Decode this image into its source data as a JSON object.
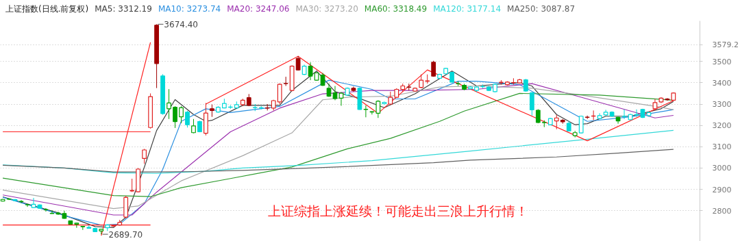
{
  "chart_data": {
    "type": "candlestick",
    "title": "上证指数(日线.前复权)",
    "categories": [
      null,
      null,
      null,
      null,
      null,
      null,
      null,
      null,
      null,
      null,
      null,
      null,
      null,
      null,
      null,
      null,
      null,
      null,
      null,
      null,
      null,
      null,
      null,
      null,
      null,
      null,
      null,
      null,
      null,
      null,
      null,
      null,
      null,
      null,
      null,
      null,
      null,
      null,
      null,
      null,
      null,
      null,
      null,
      null,
      null,
      null,
      null,
      null,
      null,
      null,
      null,
      null,
      null,
      null,
      null,
      null,
      null,
      null,
      null,
      null,
      null,
      null,
      null,
      null,
      null,
      null,
      null,
      null,
      null,
      null,
      null,
      null,
      null,
      null,
      null,
      null,
      null,
      null,
      null,
      null,
      null,
      null,
      null,
      null,
      null,
      null,
      null,
      null,
      null,
      null,
      null,
      null,
      null,
      null,
      null,
      null,
      null,
      null,
      null,
      null,
      null,
      null,
      null,
      null,
      null,
      null,
      null,
      null,
      null,
      null
    ],
    "ohlc": [
      [
        2845,
        2856,
        2843,
        2853
      ],
      [
        2855,
        2858,
        2850,
        2854
      ],
      [
        2848,
        2855,
        2846,
        2852
      ],
      [
        2844,
        2850,
        2836,
        2843
      ],
      [
        2829,
        2830,
        2818,
        2828
      ],
      [
        2815,
        2860,
        2814,
        2830
      ],
      [
        2827,
        2830,
        2810,
        2812
      ],
      [
        2805,
        2812,
        2796,
        2804
      ],
      [
        2788,
        2802,
        2786,
        2787
      ],
      [
        2789,
        2795,
        2780,
        2784
      ],
      [
        2787,
        2800,
        2762,
        2764
      ],
      [
        2752,
        2754,
        2735,
        2737
      ],
      [
        2737,
        2744,
        2720,
        2742
      ],
      [
        2727,
        2728,
        2710,
        2725
      ],
      [
        2722,
        2732,
        2716,
        2718
      ],
      [
        2717,
        2720,
        2700,
        2702
      ],
      [
        2705,
        2716,
        2689.7,
        2713
      ],
      [
        2720,
        2736,
        2705,
        2733
      ],
      [
        2728,
        2734,
        2724,
        2730
      ],
      [
        2733,
        2757,
        2730,
        2745
      ],
      [
        2770,
        2870,
        2765,
        2862
      ],
      [
        2893,
        2950,
        2888,
        2895
      ],
      [
        2889,
        3000,
        2886,
        2995
      ],
      [
        3045,
        3090,
        3020,
        3085
      ],
      [
        3190,
        3350,
        3185,
        3335
      ],
      [
        3670,
        3674.4,
        3375,
        3490
      ],
      [
        3432,
        3440,
        3250,
        3255
      ],
      [
        3278,
        3370,
        3230,
        3305
      ],
      [
        3285,
        3290,
        3188,
        3218
      ],
      [
        3240,
        3290,
        3210,
        3283
      ],
      [
        3262,
        3268,
        3190,
        3203
      ],
      [
        3166,
        3230,
        3163,
        3198
      ],
      [
        3218,
        3222,
        3168,
        3170
      ],
      [
        3163,
        3305,
        3153,
        3258
      ],
      [
        3278,
        3298,
        3240,
        3270
      ],
      [
        3263,
        3290,
        3260,
        3285
      ],
      [
        3282,
        3325,
        3280,
        3303
      ],
      [
        3286,
        3295,
        3278,
        3285
      ],
      [
        3282,
        3312,
        3280,
        3297
      ],
      [
        3297,
        3325,
        3290,
        3318
      ],
      [
        3330,
        3347,
        3290,
        3294
      ],
      [
        3284,
        3300,
        3267,
        3283
      ],
      [
        3283,
        3290,
        3275,
        3282
      ],
      [
        3282,
        3300,
        3270,
        3281
      ],
      [
        3281,
        3320,
        3270,
        3316
      ],
      [
        3310,
        3397,
        3300,
        3393
      ],
      [
        3397,
        3428,
        3385,
        3396
      ],
      [
        3364,
        3482,
        3360,
        3478
      ],
      [
        3514,
        3525,
        3457,
        3460
      ],
      [
        3439,
        3485,
        3436,
        3478
      ],
      [
        3478,
        3496,
        3412,
        3431
      ],
      [
        3412,
        3450,
        3410,
        3446
      ],
      [
        3436,
        3446,
        3385,
        3388
      ],
      [
        3374,
        3396,
        3333,
        3337
      ],
      [
        3353,
        3385,
        3318,
        3326
      ],
      [
        3328,
        3356,
        3292,
        3351
      ],
      [
        3342,
        3378,
        3340,
        3374
      ],
      [
        3374,
        3382,
        3358,
        3364
      ],
      [
        3374,
        3378,
        3273,
        3275
      ],
      [
        3276,
        3294,
        3238,
        3275
      ],
      [
        3264,
        3266,
        3251,
        3263
      ],
      [
        3257,
        3318,
        3235,
        3313
      ],
      [
        3302,
        3312,
        3298,
        3308
      ],
      [
        3300,
        3358,
        3296,
        3332
      ],
      [
        3332,
        3374,
        3330,
        3369
      ],
      [
        3369,
        3396,
        3358,
        3385
      ],
      [
        3380,
        3396,
        3364,
        3379
      ],
      [
        3361,
        3378,
        3358,
        3374
      ],
      [
        3378,
        3439,
        3374,
        3412
      ],
      [
        3407,
        3439,
        3396,
        3409
      ],
      [
        3496,
        3503,
        3428,
        3431
      ],
      [
        3421,
        3442,
        3418,
        3439
      ],
      [
        3442,
        3470,
        3440,
        3467
      ],
      [
        3449,
        3452,
        3400,
        3403
      ],
      [
        3396,
        3407,
        3385,
        3395
      ],
      [
        3388,
        3395,
        3365,
        3369
      ],
      [
        3372,
        3384,
        3370,
        3380
      ],
      [
        3364,
        3383,
        3356,
        3380
      ],
      [
        3381,
        3392,
        3375,
        3382
      ],
      [
        3380,
        3385,
        3362,
        3364
      ],
      [
        3358,
        3396,
        3355,
        3393
      ],
      [
        3401,
        3412,
        3391,
        3402
      ],
      [
        3391,
        3407,
        3388,
        3403
      ],
      [
        3400,
        3421,
        3391,
        3401
      ],
      [
        3399,
        3418,
        3396,
        3414
      ],
      [
        3414,
        3418,
        3358,
        3361
      ],
      [
        3353,
        3356,
        3246,
        3273
      ],
      [
        3271,
        3276,
        3210,
        3214
      ],
      [
        3214,
        3224,
        3192,
        3213
      ],
      [
        3203,
        3235,
        3200,
        3232
      ],
      [
        3221,
        3249,
        3182,
        3235
      ],
      [
        3224,
        3230,
        3208,
        3217
      ],
      [
        3210,
        3221,
        3172,
        3174
      ],
      [
        3152,
        3174,
        3144,
        3166
      ],
      [
        3165,
        3246,
        3162,
        3243
      ],
      [
        3239,
        3246,
        3230,
        3238
      ],
      [
        3243,
        3270,
        3224,
        3244
      ],
      [
        3232,
        3257,
        3229,
        3246
      ],
      [
        3249,
        3273,
        3246,
        3262
      ],
      [
        3262,
        3266,
        3240,
        3243
      ],
      [
        3238,
        3240,
        3208,
        3221
      ],
      [
        3243,
        3275,
        3230,
        3242
      ],
      [
        3227,
        3255,
        3224,
        3251
      ],
      [
        3251,
        3275,
        3240,
        3250
      ],
      [
        3275,
        3278,
        3234,
        3238
      ],
      [
        3246,
        3265,
        3240,
        3260
      ],
      [
        3278,
        3324,
        3270,
        3307
      ],
      [
        3310,
        3332,
        3305,
        3328
      ],
      [
        3324,
        3328,
        3316,
        3320
      ],
      [
        3318,
        3355,
        3316,
        3352
      ]
    ],
    "colors": [
      "#00a000",
      "#00a000",
      "#00d8d8",
      "#00a000",
      "#00a000",
      "#00d8d8",
      "#00d8d8",
      "#00a000",
      "#00a000",
      "#00a000",
      "#00a000",
      "#00a000",
      "#00a000",
      "#00a000",
      "#00d8d8",
      "#00d8d8",
      "#00a000",
      "#00d8d8",
      "#e02020",
      "#e02020",
      "#e02020",
      "#e02020",
      "#e02020",
      "#e02020",
      "#e02020",
      "#a00000",
      "#00d8d8",
      "#00a000",
      "#00a000",
      "#00a000",
      "#00d8d8",
      "#00a000",
      "#00d8d8",
      "#e02020",
      "#a00000",
      "#00d8d8",
      "#00d8d8",
      "#00d8d8",
      "#00d8d8",
      "#e02020",
      "#a00000",
      "#00d8d8",
      "#00d8d8",
      "#a00000",
      "#e02020",
      "#e02020",
      "#a00000",
      "#e02020",
      "#a00000",
      "#00d8d8",
      "#00a000",
      "#00a000",
      "#00a000",
      "#00a000",
      "#00a000",
      "#00a000",
      "#00d8d8",
      "#a00000",
      "#00d8d8",
      "#00a000",
      "#00a000",
      "#00a000",
      "#00d8d8",
      "#e02020",
      "#e02020",
      "#e02020",
      "#a00000",
      "#e02020",
      "#e02020",
      "#e02020",
      "#a00000",
      "#00d8d8",
      "#00d8d8",
      "#00d8d8",
      "#00a000",
      "#00a000",
      "#00d8d8",
      "#00d8d8",
      "#00d8d8",
      "#00d8d8",
      "#00d8d8",
      "#e02020",
      "#e02020",
      "#e02020",
      "#e02020",
      "#00d8d8",
      "#00d8d8",
      "#00a000",
      "#00a000",
      "#00d8d8",
      "#e02020",
      "#a00000",
      "#00d8d8",
      "#00a000",
      "#00d8d8",
      "#a00000",
      "#e02020",
      "#00d8d8",
      "#00d8d8",
      "#00d8d8",
      "#00a000",
      "#00d8d8",
      "#00d8d8",
      "#00d8d8",
      "#00d8d8",
      "#00d8d8",
      "#e02020",
      "#e02020",
      "#a00000",
      "#e02020"
    ],
    "series": [
      {
        "name": "MA5: 3312.19",
        "color": "#404040",
        "type": "line",
        "values": [
          2865,
          null,
          null,
          null,
          null,
          null,
          null,
          null,
          null,
          2790,
          null,
          null,
          null,
          null,
          null,
          2726,
          null,
          null,
          2721,
          null,
          2769,
          null,
          null,
          3004,
          null,
          3176,
          null,
          null,
          3321,
          null,
          null,
          3251,
          null,
          3219,
          3224,
          null,
          null,
          null,
          null,
          3294,
          null,
          null,
          null,
          null,
          null,
          3294,
          null,
          3364,
          null,
          null,
          null,
          3455,
          null,
          null,
          3358,
          null,
          null,
          null,
          3326,
          null,
          null,
          null,
          3283,
          null,
          null,
          null,
          null,
          3348,
          null,
          null,
          null,
          null,
          null,
          3455,
          null,
          null,
          null,
          3385,
          null,
          null,
          null,
          null,
          null,
          null,
          3401,
          null,
          3385,
          null,
          null,
          null,
          3251,
          null,
          null,
          3203,
          null,
          3208,
          null,
          null,
          3243,
          null,
          null,
          null,
          3243,
          null,
          null,
          null,
          null,
          3278,
          null,
          3312
        ]
      },
      {
        "name": "MA10: 3273.74",
        "color": "#2a8fe0",
        "type": "line",
        "values": [
          2863,
          null,
          null,
          null,
          null,
          null,
          null,
          null,
          null,
          null,
          null,
          2769,
          null,
          null,
          null,
          null,
          2732,
          null,
          null,
          2737,
          null,
          null,
          null,
          2833,
          null,
          null,
          2994,
          null,
          null,
          3219,
          null,
          null,
          null,
          3278,
          null,
          null,
          null,
          3260,
          null,
          null,
          null,
          null,
          null,
          null,
          null,
          3289,
          null,
          null,
          null,
          null,
          null,
          null,
          null,
          3412,
          null,
          null,
          null,
          null,
          null,
          null,
          3369,
          null,
          null,
          3324,
          null,
          null,
          null,
          3324,
          null,
          null,
          null,
          null,
          null,
          null,
          3407,
          null,
          null,
          3407,
          null,
          null,
          null,
          null,
          null,
          null,
          3391,
          null,
          null,
          null,
          null,
          null,
          null,
          null,
          null,
          null,
          null,
          3219,
          null,
          null,
          null,
          null,
          null,
          null,
          3240,
          null,
          null,
          null,
          null,
          null,
          null,
          3274
        ]
      },
      {
        "name": "MA20: 3247.06",
        "color": "#9b2fae",
        "type": "line",
        "values": [
          2874,
          null,
          null,
          null,
          null,
          null,
          null,
          null,
          null,
          null,
          null,
          null,
          null,
          null,
          null,
          null,
          null,
          null,
          2780,
          null,
          null,
          2780,
          null,
          null,
          null,
          2887,
          null,
          null,
          null,
          null,
          null,
          null,
          null,
          null,
          null,
          null,
          null,
          3170,
          null,
          null,
          null,
          null,
          null,
          null,
          null,
          3281,
          null,
          null,
          null,
          null,
          null,
          null,
          3348,
          null,
          null,
          null,
          null,
          null,
          null,
          null,
          3364,
          null,
          null,
          null,
          null,
          null,
          null,
          3364,
          null,
          null,
          null,
          null,
          null,
          null,
          null,
          null,
          null,
          3369,
          null,
          null,
          null,
          null,
          null,
          null,
          null,
          null,
          3396,
          null,
          null,
          null,
          null,
          null,
          null,
          null,
          3332,
          null,
          null,
          null,
          null,
          null,
          null,
          null,
          null,
          null,
          null,
          null,
          3235,
          null,
          null,
          3247
        ]
      },
      {
        "name": "MA30: 3273.20",
        "color": "#a8a8a8",
        "type": "line",
        "values": [
          2897,
          null,
          null,
          null,
          null,
          null,
          null,
          null,
          null,
          null,
          null,
          null,
          null,
          null,
          null,
          null,
          null,
          null,
          2810,
          null,
          null,
          null,
          2822,
          null,
          null,
          null,
          null,
          null,
          null,
          2940,
          null,
          null,
          null,
          null,
          null,
          null,
          null,
          null,
          null,
          3058,
          null,
          null,
          null,
          null,
          null,
          null,
          null,
          3165,
          null,
          null,
          null,
          null,
          3320,
          null,
          null,
          null,
          3332,
          null,
          null,
          null,
          null,
          null,
          null,
          3337,
          null,
          null,
          null,
          null,
          null,
          null,
          null,
          3380,
          null,
          null,
          null,
          null,
          null,
          3385,
          null,
          null,
          null,
          null,
          null,
          null,
          null,
          null,
          3374,
          null,
          null,
          null,
          null,
          null,
          null,
          null,
          3342,
          null,
          null,
          null,
          null,
          null,
          null,
          null,
          null,
          null,
          null,
          null,
          null,
          3285,
          null,
          3273
        ]
      },
      {
        "name": "MA60: 3318.49",
        "color": "#2e9a2e",
        "type": "line",
        "values": [
          2953,
          null,
          null,
          null,
          null,
          null,
          null,
          null,
          null,
          null,
          null,
          null,
          null,
          null,
          null,
          null,
          null,
          null,
          2871,
          null,
          null,
          null,
          null,
          null,
          2866,
          null,
          null,
          null,
          null,
          2908,
          null,
          null,
          null,
          null,
          null,
          null,
          null,
          2951,
          null,
          null,
          null,
          null,
          null,
          null,
          null,
          null,
          null,
          3005,
          null,
          null,
          null,
          null,
          null,
          null,
          null,
          null,
          3090,
          null,
          null,
          null,
          null,
          null,
          null,
          3139,
          null,
          null,
          null,
          null,
          null,
          null,
          null,
          3219,
          null,
          null,
          null,
          3267,
          null,
          null,
          null,
          null,
          null,
          null,
          null,
          null,
          3350,
          null,
          null,
          null,
          null,
          null,
          null,
          null,
          null,
          null,
          null,
          null,
          null,
          3342,
          null,
          null,
          null,
          null,
          null,
          null,
          null,
          null,
          null,
          null,
          null,
          3318
        ]
      },
      {
        "name": "MA120: 3177.14",
        "color": "#33d8d8",
        "type": "line",
        "values": [
          3015,
          null,
          null,
          null,
          null,
          null,
          null,
          null,
          null,
          null,
          3000,
          null,
          null,
          null,
          null,
          null,
          null,
          null,
          2978,
          null,
          null,
          null,
          null,
          null,
          null,
          2975,
          null,
          null,
          null,
          null,
          null,
          null,
          null,
          2985,
          null,
          null,
          null,
          null,
          null,
          3000,
          null,
          null,
          null,
          null,
          null,
          null,
          null,
          null,
          3012,
          null,
          null,
          null,
          null,
          null,
          null,
          null,
          null,
          null,
          null,
          null,
          3035,
          null,
          null,
          null,
          null,
          null,
          null,
          null,
          null,
          null,
          null,
          null,
          null,
          null,
          null,
          null,
          3080,
          null,
          null,
          null,
          null,
          null,
          null,
          null,
          null,
          null,
          null,
          null,
          null,
          null,
          null,
          null,
          null,
          null,
          null,
          3135,
          null,
          null,
          null,
          null,
          null,
          null,
          null,
          null,
          null,
          null,
          null,
          null,
          null,
          3177
        ]
      },
      {
        "name": "MA250: 3087.87",
        "color": "#606060",
        "type": "line",
        "values": [
          3013,
          null,
          null,
          null,
          null,
          null,
          null,
          null,
          null,
          null,
          3000,
          null,
          null,
          null,
          null,
          null,
          null,
          null,
          2982,
          null,
          null,
          null,
          null,
          null,
          null,
          2982,
          null,
          null,
          null,
          null,
          2983,
          null,
          null,
          null,
          null,
          null,
          null,
          null,
          null,
          2989,
          null,
          null,
          null,
          null,
          null,
          null,
          null,
          null,
          null,
          null,
          3000,
          null,
          null,
          null,
          null,
          null,
          null,
          null,
          null,
          null,
          3012,
          null,
          null,
          null,
          null,
          null,
          null,
          null,
          null,
          null,
          3025,
          null,
          null,
          null,
          null,
          null,
          3037,
          null,
          null,
          null,
          null,
          null,
          null,
          null,
          null,
          null,
          null,
          null,
          null,
          null,
          3052,
          null,
          null,
          null,
          null,
          null,
          null,
          null,
          null,
          null,
          3070,
          null,
          null,
          null,
          null,
          null,
          null,
          null,
          null,
          3088
        ]
      },
      {
        "color": "#ff2020",
        "type": "line",
        "values": [
          null,
          null,
          null,
          null,
          null,
          null,
          null,
          null,
          null,
          null,
          null,
          null,
          null,
          null,
          null,
          null,
          2683,
          null,
          null,
          null,
          null,
          null,
          null,
          null,
          3589,
          null,
          null,
          null,
          null,
          null,
          null,
          null,
          null,
          null,
          null,
          null,
          null,
          null,
          null,
          null,
          null,
          null,
          null,
          null,
          null,
          null,
          null,
          null,
          null,
          null,
          null,
          null,
          null,
          null,
          null,
          null,
          null,
          null,
          null,
          null,
          null,
          null,
          null,
          null,
          null,
          null,
          null,
          null,
          null,
          null,
          null,
          null,
          null,
          null,
          null,
          null,
          null,
          null,
          null,
          null,
          null,
          null,
          null,
          null,
          null,
          null,
          null,
          null,
          null,
          null,
          null,
          null,
          null,
          null,
          null,
          null,
          null,
          null,
          null,
          null,
          null,
          null,
          null,
          null,
          null,
          null,
          null,
          null,
          null,
          null
        ]
      },
      {
        "color": "#ff2020",
        "type": "line",
        "values": [
          null,
          null,
          null,
          null,
          null,
          null,
          null,
          null,
          null,
          null,
          null,
          null,
          null,
          null,
          null,
          null,
          null,
          null,
          null,
          null,
          null,
          null,
          null,
          null,
          null,
          null,
          null,
          null,
          null,
          null,
          null,
          null,
          null,
          3300,
          null,
          null,
          null,
          null,
          null,
          null,
          null,
          null,
          null,
          null,
          null,
          null,
          null,
          null,
          3524,
          null,
          null,
          null,
          null,
          null,
          null,
          null,
          null,
          null,
          null,
          null,
          null,
          3257,
          null,
          null,
          null,
          null,
          null,
          null,
          null,
          3460,
          null,
          null,
          null,
          null,
          null,
          null,
          null,
          null,
          null,
          null,
          null,
          null,
          null,
          null,
          null,
          null,
          null,
          null,
          null,
          null,
          null,
          null,
          null,
          null,
          null,
          3128,
          null,
          null,
          null,
          null,
          null,
          null,
          null,
          null,
          null,
          null,
          null,
          null,
          null,
          3316
        ]
      },
      {
        "color": "#ff2020",
        "type": "line",
        "values": [
          3170,
          null,
          null,
          null,
          null,
          null,
          null,
          null,
          null,
          null,
          null,
          null,
          null,
          null,
          null,
          null,
          null,
          null,
          null,
          null,
          null,
          null,
          null,
          null,
          3170,
          null,
          null,
          null,
          null,
          null,
          null,
          null,
          null,
          null,
          null,
          null,
          null,
          null,
          null,
          null,
          null,
          null,
          null,
          null,
          null,
          null,
          null,
          null,
          null,
          null,
          null,
          null,
          null,
          null,
          null,
          null,
          null,
          null,
          null,
          null,
          null,
          null,
          null,
          null,
          null,
          null,
          null,
          null,
          null,
          null,
          null,
          null,
          null,
          null,
          null,
          null,
          null,
          null,
          null,
          null,
          null,
          null,
          null,
          null,
          null,
          null,
          null,
          null,
          null,
          null,
          null,
          null,
          null,
          null,
          null,
          null,
          null,
          null,
          null,
          null,
          null,
          null,
          null,
          null,
          null,
          null,
          null,
          null,
          null,
          null
        ]
      },
      {
        "color": "#ff2020",
        "type": "line",
        "values": [
          2733,
          null,
          null,
          null,
          null,
          null,
          null,
          null,
          null,
          null,
          null,
          null,
          null,
          null,
          null,
          null,
          null,
          null,
          null,
          null,
          null,
          null,
          null,
          null,
          2733,
          null,
          null,
          null,
          null,
          null,
          null,
          null,
          null,
          null,
          null,
          null,
          null,
          null,
          null,
          null,
          null,
          null,
          null,
          null,
          null,
          null,
          null,
          null,
          null,
          null,
          null,
          null,
          null,
          null,
          null,
          null,
          null,
          null,
          null,
          null,
          null,
          null,
          null,
          null,
          null,
          null,
          null,
          null,
          null,
          null,
          null,
          null,
          null,
          null,
          null,
          null,
          null,
          null,
          null,
          null,
          null,
          null,
          null,
          null,
          null,
          null,
          null,
          null,
          null,
          null,
          null,
          null,
          null,
          null,
          null,
          null,
          null,
          null,
          null,
          null,
          null,
          null,
          null,
          null,
          null,
          null,
          null,
          null,
          null,
          null
        ]
      }
    ],
    "ylim": [
      2650,
      3690
    ],
    "yticks": [
      2800,
      2900,
      3000,
      3100,
      3200,
      3300,
      3400,
      3500,
      {
        "value": 3579.2,
        "label": "3579.2"
      }
    ],
    "grid": "y",
    "legend": "top",
    "tick_labels": "y",
    "annotations": [
      "3674.40",
      "2689.70",
      "上证综指上涨延续！可能走出三浪上升行情！"
    ]
  }
}
